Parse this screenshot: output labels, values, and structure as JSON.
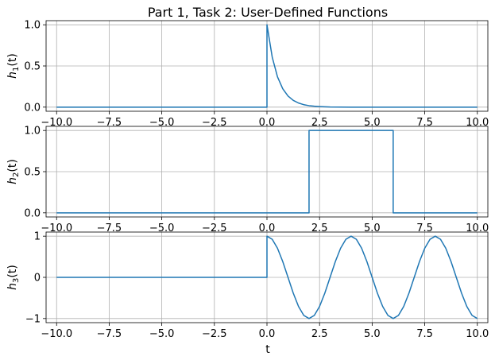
{
  "figure": {
    "title": "Part 1, Task 2: User-Defined Functions",
    "xlabel": "t"
  },
  "colors": {
    "line": "#1f77b4",
    "grid": "#b0b0b0",
    "frame": "#000000",
    "background": "#ffffff"
  },
  "chart_data": [
    {
      "type": "line",
      "ylabel_base": "h",
      "ylabel_sub": "1",
      "ylabel_suffix": "(t)",
      "xlim": [
        -10.5,
        10.5
      ],
      "ylim": [
        -0.05,
        1.05
      ],
      "xticks": [
        -10,
        -7.5,
        -5,
        -2.5,
        0,
        2.5,
        5,
        7.5,
        10
      ],
      "xtick_labels": [
        "−10.0",
        "−7.5",
        "−5.0",
        "−2.5",
        "0.0",
        "2.5",
        "5.0",
        "7.5",
        "10.0"
      ],
      "yticks": [
        0,
        0.5,
        1
      ],
      "ytick_labels": [
        "0.0",
        "0.5",
        "1.0"
      ],
      "grid": true,
      "series": [
        {
          "x": [
            -10,
            0,
            0,
            0.25,
            0.5,
            0.75,
            1,
            1.25,
            1.5,
            1.75,
            2,
            2.25,
            2.5,
            2.75,
            3,
            3.5,
            4,
            5,
            6,
            8,
            10
          ],
          "y": [
            0,
            0,
            1,
            0.607,
            0.368,
            0.223,
            0.135,
            0.082,
            0.05,
            0.03,
            0.018,
            0.011,
            0.007,
            0.004,
            0.002,
            0.001,
            0,
            0,
            0,
            0,
            0
          ]
        }
      ]
    },
    {
      "type": "line",
      "ylabel_base": "h",
      "ylabel_sub": "2",
      "ylabel_suffix": "(t)",
      "xlim": [
        -10.5,
        10.5
      ],
      "ylim": [
        -0.05,
        1.05
      ],
      "xticks": [
        -10,
        -7.5,
        -5,
        -2.5,
        0,
        2.5,
        5,
        7.5,
        10
      ],
      "xtick_labels": [
        "−10.0",
        "−7.5",
        "−5.0",
        "−2.5",
        "0.0",
        "2.5",
        "5.0",
        "7.5",
        "10.0"
      ],
      "yticks": [
        0,
        0.5,
        1
      ],
      "ytick_labels": [
        "0.0",
        "0.5",
        "1.0"
      ],
      "grid": true,
      "series": [
        {
          "x": [
            -10,
            2,
            2,
            6,
            6,
            10
          ],
          "y": [
            0,
            0,
            1,
            1,
            0,
            0
          ]
        }
      ]
    },
    {
      "type": "line",
      "ylabel_base": "h",
      "ylabel_sub": "3",
      "ylabel_suffix": "(t)",
      "xlim": [
        -10.5,
        10.5
      ],
      "ylim": [
        -1.1,
        1.1
      ],
      "xticks": [
        -10,
        -7.5,
        -5,
        -2.5,
        0,
        2.5,
        5,
        7.5,
        10
      ],
      "xtick_labels": [
        "−10.0",
        "−7.5",
        "−5.0",
        "−2.5",
        "0.0",
        "2.5",
        "5.0",
        "7.5",
        "10.0"
      ],
      "yticks": [
        -1,
        0,
        1
      ],
      "ytick_labels": [
        "−1",
        "0",
        "1"
      ],
      "grid": true,
      "series": [
        {
          "x": [
            -10,
            0,
            0,
            0.25,
            0.5,
            0.75,
            1,
            1.25,
            1.5,
            1.75,
            2,
            2.25,
            2.5,
            2.75,
            3,
            3.25,
            3.5,
            3.75,
            4,
            4.25,
            4.5,
            4.75,
            5,
            5.25,
            5.5,
            5.75,
            6,
            6.25,
            6.5,
            6.75,
            7,
            7.25,
            7.5,
            7.75,
            8,
            8.25,
            8.5,
            8.75,
            9,
            9.25,
            9.5,
            9.75,
            10
          ],
          "y": [
            0,
            0,
            1,
            0.924,
            0.707,
            0.383,
            0,
            -0.383,
            -0.707,
            -0.924,
            -1,
            -0.924,
            -0.707,
            -0.383,
            0,
            0.383,
            0.707,
            0.924,
            1,
            0.924,
            0.707,
            0.383,
            0,
            -0.383,
            -0.707,
            -0.924,
            -1,
            -0.924,
            -0.707,
            -0.383,
            0,
            0.383,
            0.707,
            0.924,
            1,
            0.924,
            0.707,
            0.383,
            0,
            -0.383,
            -0.707,
            -0.924,
            -1
          ]
        }
      ]
    }
  ]
}
